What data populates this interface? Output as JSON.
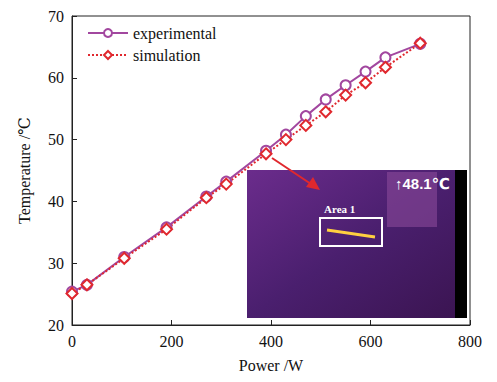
{
  "chart_data": {
    "type": "line",
    "x_label": "Power /W",
    "y_label": "Temperature /℃",
    "x": [
      0,
      30,
      105,
      190,
      270,
      310,
      390,
      430,
      470,
      510,
      550,
      590,
      630,
      700
    ],
    "series": [
      {
        "name": "experimental",
        "color": "#a2479f",
        "marker": "circle",
        "line_style": "solid",
        "values": [
          25.4,
          26.5,
          31.0,
          35.8,
          40.8,
          43.2,
          48.2,
          50.8,
          53.8,
          56.5,
          58.8,
          61.0,
          63.3,
          65.5
        ]
      },
      {
        "name": "simulation",
        "color": "#e0282e",
        "marker": "diamond",
        "line_style": "dotted",
        "values": [
          25.1,
          26.5,
          30.8,
          35.5,
          40.6,
          42.8,
          47.7,
          50.0,
          52.3,
          54.5,
          57.2,
          59.2,
          61.7,
          65.6
        ]
      }
    ],
    "xlim": [
      0,
      800
    ],
    "xticks": [
      0,
      200,
      400,
      600,
      800
    ],
    "ylim": [
      20,
      70
    ],
    "yticks": [
      20,
      30,
      40,
      50,
      60,
      70
    ],
    "grid": false,
    "legend": "upper left",
    "annotations": [
      "Area 1",
      "↑48.1℃"
    ]
  }
}
